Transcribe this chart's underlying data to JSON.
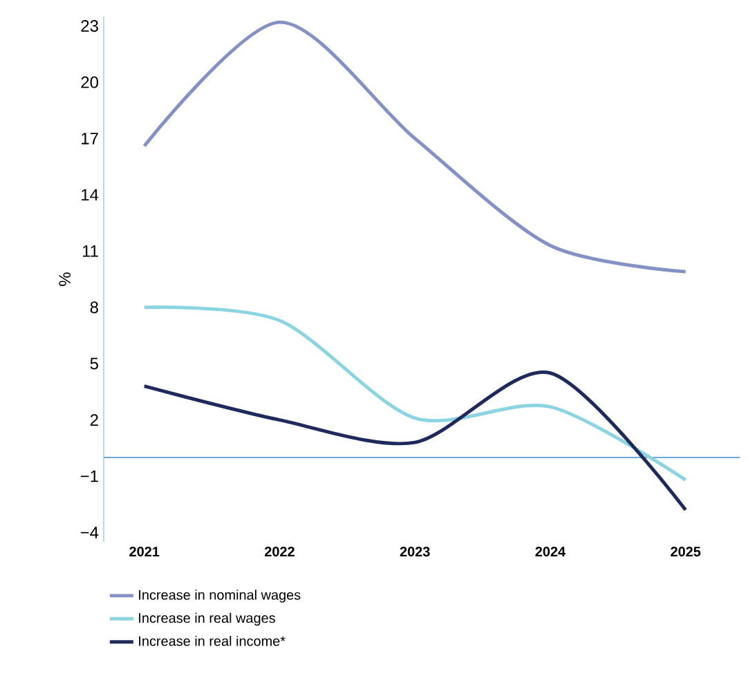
{
  "chart_data": {
    "type": "line",
    "ylabel": "%",
    "categories": [
      "2021",
      "2022",
      "2023",
      "2024",
      "2025"
    ],
    "series": [
      {
        "name": "Increase in nominal wages",
        "color": "#8391c4",
        "values": [
          16.6,
          23.2,
          17.0,
          11.3,
          9.9
        ]
      },
      {
        "name": "Increase in real wages",
        "color": "#8dd4e3",
        "values": [
          8.0,
          7.3,
          2.1,
          2.7,
          -1.2
        ]
      },
      {
        "name": "Increase in real income*",
        "color": "#1f2a5c",
        "values": [
          3.8,
          2.0,
          0.8,
          4.5,
          -2.8
        ]
      }
    ],
    "ylim": [
      -4.5,
      23.5
    ],
    "yticks": [
      {
        "value": -4,
        "label": "−4"
      },
      {
        "value": -1,
        "label": "−1"
      },
      2,
      5,
      8,
      11,
      14,
      17,
      20,
      23
    ],
    "ref_lines": [
      {
        "axis": "y",
        "value": 0,
        "color": "#5b9bd5"
      }
    ],
    "legend": "bottom",
    "marker": "none",
    "line_style": "solid",
    "grid": false
  }
}
